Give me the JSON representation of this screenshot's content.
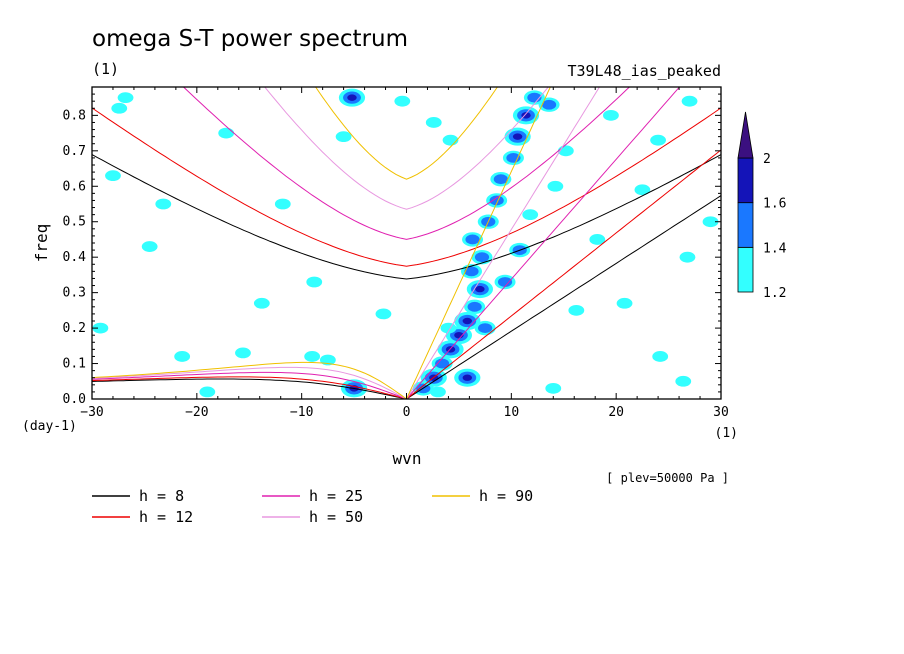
{
  "chart_data": {
    "type": "heatmap",
    "title": "omega S-T power spectrum",
    "subtitle_left": "(1)",
    "subtitle_right": "T39L48_ias_peaked",
    "xlabel": "wvn",
    "ylabel": "freq",
    "x_unit": "(1)",
    "y_unit": "(day-1)",
    "xlim": [
      -30,
      30
    ],
    "ylim": [
      0,
      0.88
    ],
    "xticks": [
      -30,
      -20,
      -10,
      0,
      10,
      20,
      30
    ],
    "yticks": [
      0.0,
      0.1,
      0.2,
      0.3,
      0.4,
      0.5,
      0.6,
      0.7,
      0.8
    ],
    "ytick_labels": [
      "0.0",
      "0.1",
      "0.2",
      "0.3",
      "0.4",
      "0.5",
      "0.6",
      "0.7",
      "0.8"
    ],
    "annotation": "[ plev=50000 Pa ]",
    "colorbar": {
      "levels": [
        1.2,
        1.4,
        1.6,
        2
      ],
      "labels": [
        "1.2",
        "1.4",
        "1.6",
        "2"
      ],
      "colors": [
        "#33ffff",
        "#1a78ff",
        "#1414b8",
        "#3b1080"
      ]
    },
    "legend": [
      {
        "label": "h =  8",
        "color": "#000000"
      },
      {
        "label": "h = 12",
        "color": "#ee0000"
      },
      {
        "label": "h = 25",
        "color": "#e020b0"
      },
      {
        "label": "h = 50",
        "color": "#e898e0"
      },
      {
        "label": "h = 90",
        "color": "#f0c000"
      }
    ],
    "dispersion_curves": {
      "equivalent_depths": [
        8,
        12,
        25,
        50,
        90
      ],
      "wave_types": [
        "kelvin",
        "eig_n1",
        "wig_n1",
        "mrg_ig"
      ]
    },
    "power_blobs": [
      {
        "x": 1.6,
        "y": 0.03,
        "level": 2
      },
      {
        "x": 2.6,
        "y": 0.06,
        "level": 3
      },
      {
        "x": 3.4,
        "y": 0.1,
        "level": 2
      },
      {
        "x": 4.2,
        "y": 0.14,
        "level": 3
      },
      {
        "x": 5.0,
        "y": 0.18,
        "level": 3
      },
      {
        "x": 5.8,
        "y": 0.22,
        "level": 3
      },
      {
        "x": 6.5,
        "y": 0.26,
        "level": 2
      },
      {
        "x": 7.0,
        "y": 0.31,
        "level": 3
      },
      {
        "x": 6.2,
        "y": 0.36,
        "level": 2
      },
      {
        "x": 7.2,
        "y": 0.4,
        "level": 2
      },
      {
        "x": 6.3,
        "y": 0.45,
        "level": 2
      },
      {
        "x": 7.8,
        "y": 0.5,
        "level": 2
      },
      {
        "x": 8.6,
        "y": 0.56,
        "level": 2
      },
      {
        "x": 9.0,
        "y": 0.62,
        "level": 2
      },
      {
        "x": 10.2,
        "y": 0.68,
        "level": 2
      },
      {
        "x": 10.6,
        "y": 0.74,
        "level": 3
      },
      {
        "x": 11.4,
        "y": 0.8,
        "level": 3
      },
      {
        "x": 12.2,
        "y": 0.85,
        "level": 2
      },
      {
        "x": 5.8,
        "y": 0.06,
        "level": 3
      },
      {
        "x": 7.5,
        "y": 0.2,
        "level": 2
      },
      {
        "x": -5.0,
        "y": 0.03,
        "level": 3
      },
      {
        "x": -7.5,
        "y": 0.11,
        "level": 1
      },
      {
        "x": -9.0,
        "y": 0.12,
        "level": 1
      },
      {
        "x": 10.8,
        "y": 0.42,
        "level": 2
      },
      {
        "x": 11.8,
        "y": 0.52,
        "level": 1
      },
      {
        "x": 13.6,
        "y": 0.83,
        "level": 2
      },
      {
        "x": 15.2,
        "y": 0.7,
        "level": 1
      },
      {
        "x": 19.5,
        "y": 0.8,
        "level": 1
      },
      {
        "x": 22.5,
        "y": 0.59,
        "level": 1
      },
      {
        "x": 27.0,
        "y": 0.84,
        "level": 1
      },
      {
        "x": 14.0,
        "y": 0.03,
        "level": 1
      },
      {
        "x": 24.2,
        "y": 0.12,
        "level": 1
      },
      {
        "x": 26.4,
        "y": 0.05,
        "level": 1
      },
      {
        "x": -2.2,
        "y": 0.24,
        "level": 1
      },
      {
        "x": -15.6,
        "y": 0.13,
        "level": 1
      },
      {
        "x": -21.4,
        "y": 0.12,
        "level": 1
      },
      {
        "x": -23.2,
        "y": 0.55,
        "level": 1
      },
      {
        "x": -24.5,
        "y": 0.43,
        "level": 1
      },
      {
        "x": -17.2,
        "y": 0.75,
        "level": 1
      },
      {
        "x": -26.8,
        "y": 0.85,
        "level": 1
      },
      {
        "x": -28.0,
        "y": 0.63,
        "level": 1
      },
      {
        "x": -11.8,
        "y": 0.55,
        "level": 1
      },
      {
        "x": -13.8,
        "y": 0.27,
        "level": 1
      },
      {
        "x": -6.0,
        "y": 0.74,
        "level": 1
      },
      {
        "x": -0.4,
        "y": 0.84,
        "level": 1
      },
      {
        "x": 4.2,
        "y": 0.73,
        "level": 1
      },
      {
        "x": 2.6,
        "y": 0.78,
        "level": 1
      },
      {
        "x": -5.2,
        "y": 0.85,
        "level": 3
      },
      {
        "x": -29.2,
        "y": 0.2,
        "level": 1
      },
      {
        "x": -27.4,
        "y": 0.82,
        "level": 1
      },
      {
        "x": 18.2,
        "y": 0.45,
        "level": 1
      },
      {
        "x": 26.8,
        "y": 0.4,
        "level": 1
      },
      {
        "x": 29.0,
        "y": 0.5,
        "level": 1
      },
      {
        "x": 20.8,
        "y": 0.27,
        "level": 1
      },
      {
        "x": 16.2,
        "y": 0.25,
        "level": 1
      },
      {
        "x": -8.8,
        "y": 0.33,
        "level": 1
      },
      {
        "x": 14.2,
        "y": 0.6,
        "level": 1
      },
      {
        "x": 24.0,
        "y": 0.73,
        "level": 1
      },
      {
        "x": -19.0,
        "y": 0.02,
        "level": 1
      },
      {
        "x": 9.4,
        "y": 0.33,
        "level": 2
      },
      {
        "x": 4.0,
        "y": 0.2,
        "level": 1
      },
      {
        "x": 3.0,
        "y": 0.02,
        "level": 1
      }
    ]
  }
}
